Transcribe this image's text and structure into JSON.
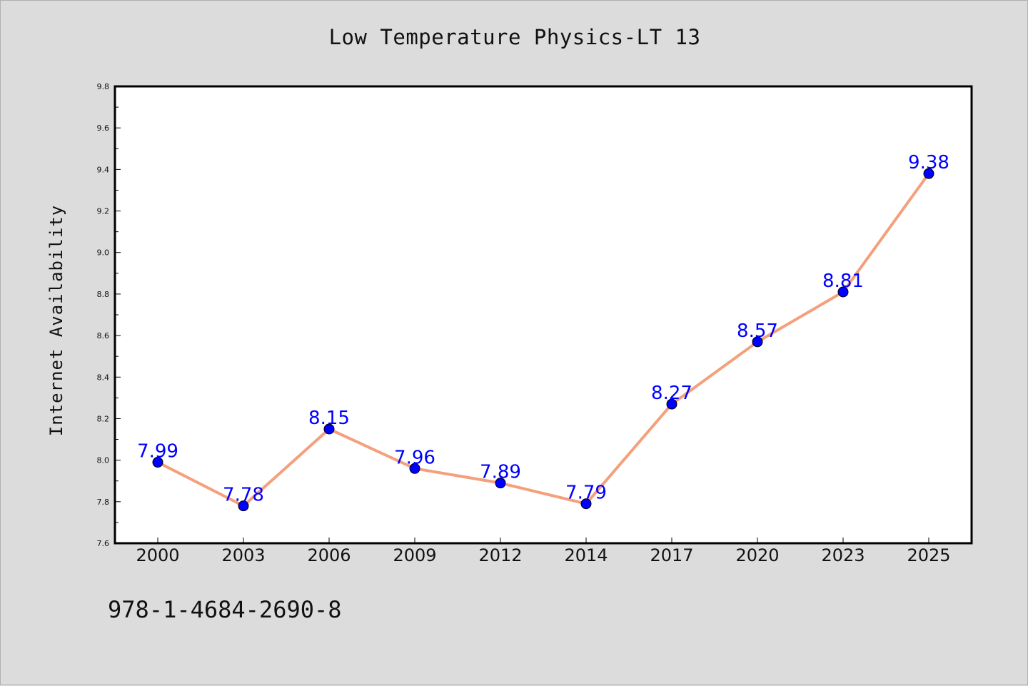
{
  "page": {
    "title": "Low Temperature Physics-LT 13",
    "footer": "978-1-4684-2690-8"
  },
  "chart_data": {
    "type": "line",
    "title": "Low Temperature Physics-LT 13",
    "xlabel": "",
    "ylabel": "Internet Availability",
    "categories": [
      "2000",
      "2003",
      "2006",
      "2009",
      "2012",
      "2014",
      "2017",
      "2020",
      "2023",
      "2025"
    ],
    "series": [
      {
        "values": [
          7.99,
          7.78,
          8.15,
          7.96,
          7.89,
          7.79,
          8.27,
          8.57,
          8.81,
          9.38
        ]
      }
    ],
    "ylim": [
      7.6,
      9.8
    ],
    "yticks": [
      "7.6",
      "7.8",
      "8.0",
      "8.2",
      "8.4",
      "8.6",
      "8.8",
      "9.0",
      "9.2",
      "9.4",
      "9.6",
      "9.8"
    ],
    "grid": false,
    "legend": "none",
    "colors": {
      "line": "#f4a07c",
      "marker": "#0000ff",
      "data_label": "#0000ff",
      "plot_background": "#ffffff",
      "figure_background": "#dcdcdc"
    }
  }
}
